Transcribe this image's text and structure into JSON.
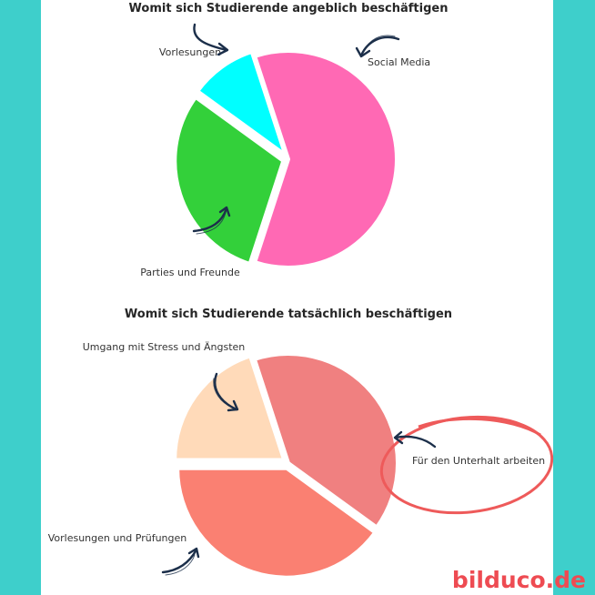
{
  "colors": {
    "background": "#3ecfcb",
    "panel": "#ffffff",
    "annotation_arrow": "#1c2f4a",
    "highlight_ring": "#ee5a5a",
    "watermark": "#ee4b52"
  },
  "watermark": "bilduco.de",
  "chart_data": [
    {
      "type": "pie",
      "title": "Womit sich Studierende angeblich beschäftigen",
      "slices": [
        {
          "label": "Vorlesungen",
          "value": 10,
          "color": "#00ffff",
          "exploded": true
        },
        {
          "label": "Social Media",
          "value": 30,
          "color": "#33d03a",
          "exploded": true
        },
        {
          "label": "Parties und Freunde",
          "value": 60,
          "color": "#ff69b4",
          "exploded": false
        }
      ]
    },
    {
      "type": "pie",
      "title": "Womit sich Studierende tatsächlich beschäftigen",
      "slices": [
        {
          "label": "Umgang mit Stress und Ängsten",
          "value": 20,
          "color": "#ffdab9",
          "exploded": true
        },
        {
          "label": "Für den Unterhalt arbeiten",
          "value": 40,
          "color": "#fa8072",
          "exploded": true,
          "highlighted": true
        },
        {
          "label": "Vorlesungen und Prüfungen",
          "value": 40,
          "color": "#f08080",
          "exploded": false
        }
      ]
    }
  ]
}
